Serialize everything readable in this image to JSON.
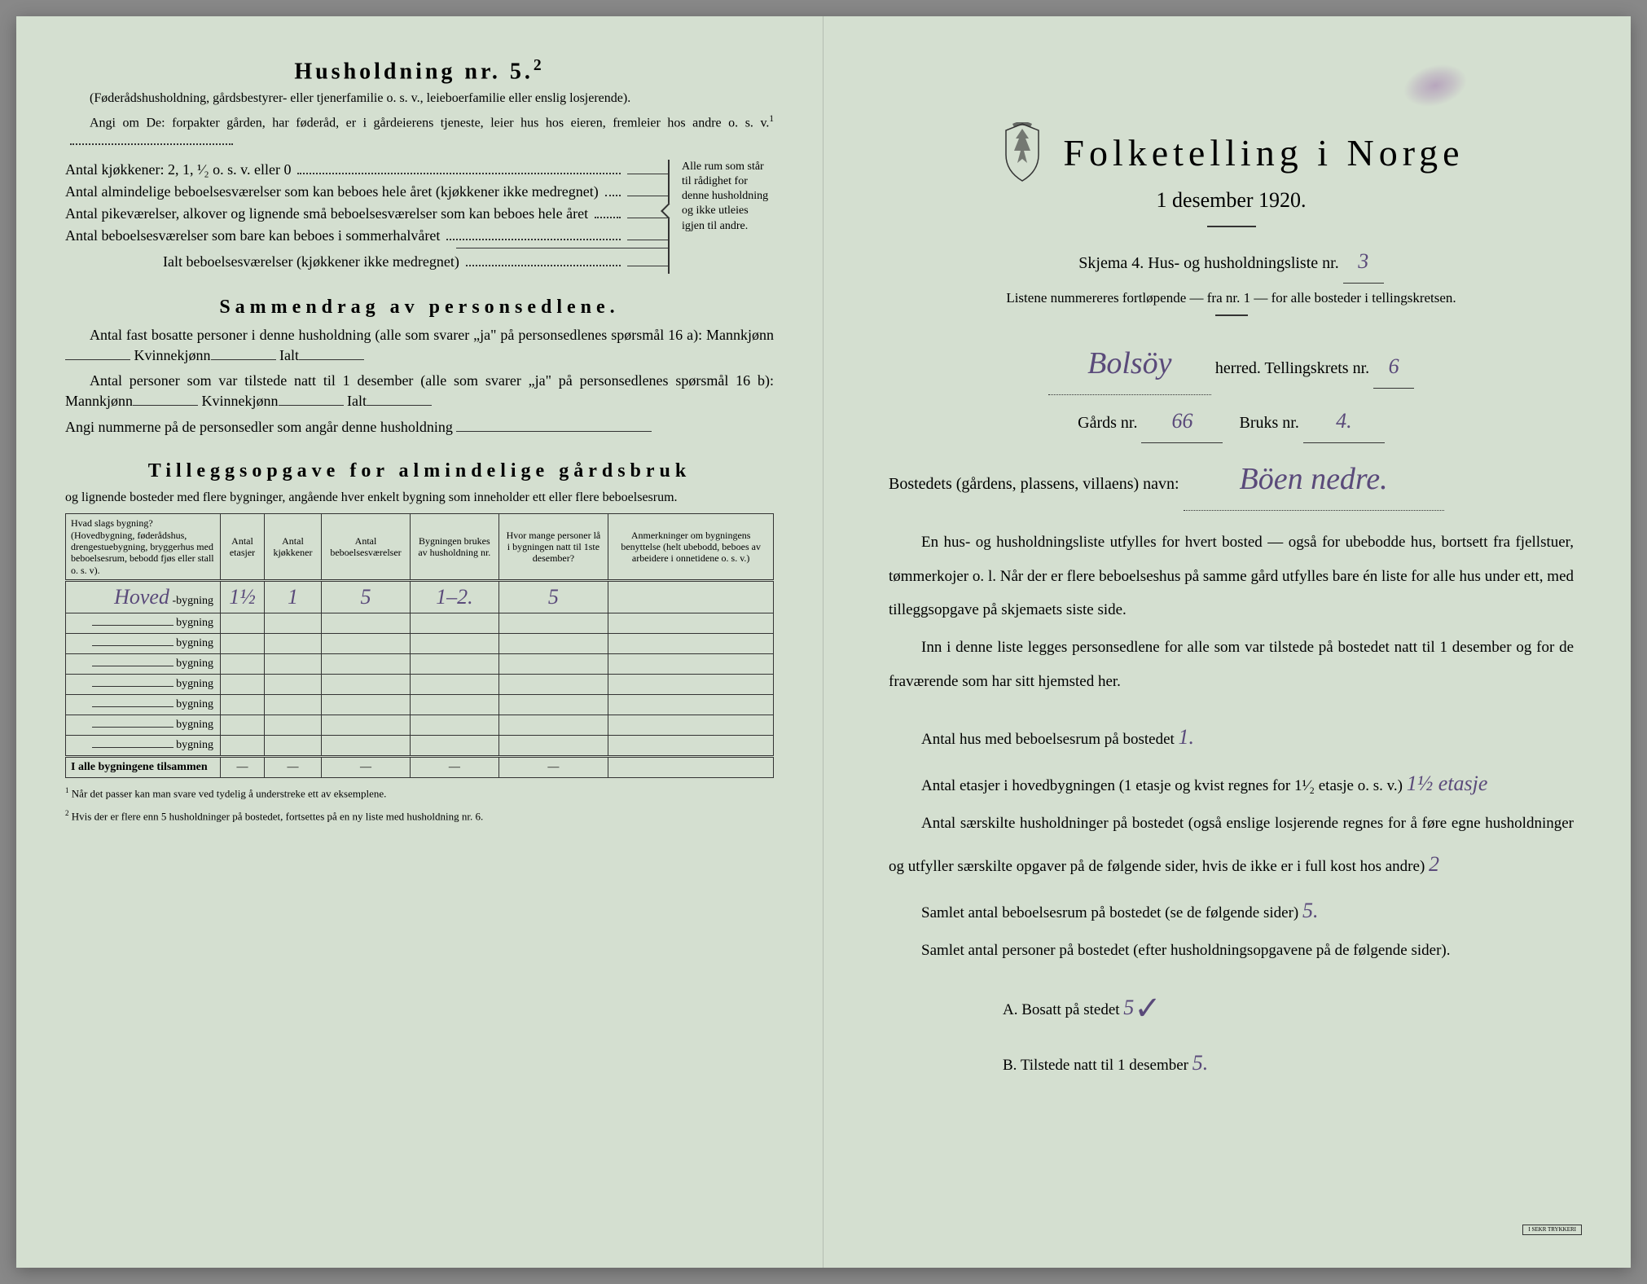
{
  "leftPage": {
    "heading": "Husholdning nr. 5.",
    "headingSup": "2",
    "note1": "(Føderådshusholdning, gårdsbestyrer- eller tjenerfamilie o. s. v., leieboerfamilie eller enslig losjerende).",
    "note2": "Angi om De:  forpakter gården, har føderåd, er i gårdeierens tjeneste, leier hus hos eieren, fremleier hos andre o. s. v.",
    "note2Sup": "1",
    "rows": [
      "Antal kjøkkener: 2, 1, ¹∕₂ o. s. v. eller 0",
      "Antal almindelige beboelsesværelser som kan beboes hele året (kjøkkener ikke medregnet)",
      "Antal pikeværelser, alkover og lignende små beboelsesværelser som kan beboes hele året",
      "Antal beboelsesværelser som bare kan beboes i sommerhalvåret"
    ],
    "rowsTotal": "Ialt beboelsesværelser  (kjøkkener ikke medregnet)",
    "braceText": "Alle rum som står til rådighet for denne husholdning og ikke utleies igjen til andre.",
    "section2Title": "Sammendrag av personsedlene.",
    "s2_line1a": "Antal fast bosatte personer i denne husholdning (alle som svarer „ja\" på personsedlenes spørsmål 16 a): Mannkjønn",
    "s2_line1b": "Kvinnekjønn",
    "s2_line1c": "Ialt",
    "s2_line2a": "Antal personer som var tilstede natt til 1 desember (alle som svarer „ja\" på personsedlenes spørsmål 16 b): Mannkjønn",
    "s2_line3": "Angi nummerne på de personsedler som angår denne husholdning",
    "section3Title": "Tilleggsopgave for almindelige gårdsbruk",
    "s3_sub": "og lignende bosteder med flere bygninger, angående hver enkelt bygning som inneholder ett eller flere beboelsesrum.",
    "table": {
      "headers": [
        "Hvad slags bygning?\n(Hovedbygning, føderådshus, drengestuebygning, bryggerhus med beboelsesrum, bebodd fjøs eller stall o. s. v).",
        "Antal etasjer",
        "Antal kjøkkener",
        "Antal beboelsesværelser",
        "Bygningen brukes av husholdning nr.",
        "Hvor mange personer lå i bygningen natt til 1ste desember?",
        "Anmerkninger om bygningens benyttelse (helt ubebodd, beboes av arbeidere i onnetidene o. s. v.)"
      ],
      "rows": [
        {
          "label": "Hoved",
          "suffix": "-bygning",
          "vals": [
            "1½",
            "1",
            "5",
            "1–2.",
            "5",
            ""
          ]
        },
        {
          "label": "",
          "suffix": "bygning",
          "vals": [
            "",
            "",
            "",
            "",
            "",
            ""
          ]
        },
        {
          "label": "",
          "suffix": "bygning",
          "vals": [
            "",
            "",
            "",
            "",
            "",
            ""
          ]
        },
        {
          "label": "",
          "suffix": "bygning",
          "vals": [
            "",
            "",
            "",
            "",
            "",
            ""
          ]
        },
        {
          "label": "",
          "suffix": "bygning",
          "vals": [
            "",
            "",
            "",
            "",
            "",
            ""
          ]
        },
        {
          "label": "",
          "suffix": "bygning",
          "vals": [
            "",
            "",
            "",
            "",
            "",
            ""
          ]
        },
        {
          "label": "",
          "suffix": "bygning",
          "vals": [
            "",
            "",
            "",
            "",
            "",
            ""
          ]
        },
        {
          "label": "",
          "suffix": "bygning",
          "vals": [
            "",
            "",
            "",
            "",
            "",
            ""
          ]
        }
      ],
      "totalLabel": "I alle bygningene tilsammen",
      "totalVals": [
        "—",
        "—",
        "—",
        "—",
        "—",
        ""
      ]
    },
    "footnote1": "Når det passer kan man svare ved tydelig å understreke ett av eksemplene.",
    "footnote2": "Hvis der er flere enn 5 husholdninger på bostedet, fortsettes på en ny liste med husholdning nr. 6.",
    "fn1Sup": "1",
    "fn2Sup": "2"
  },
  "rightPage": {
    "title": "Folketelling  i  Norge",
    "subtitle": "1 desember 1920.",
    "skjemaLine": "Skjema 4.   Hus- og husholdningsliste nr.",
    "skjemaNr": "3",
    "listSub": "Listene nummereres fortløpende — fra nr. 1 — for alle bosteder i tellingskretsen.",
    "herredVal": "Bolsöy",
    "herredLabel": "herred.   Tellingskrets nr.",
    "tellingsNr": "6",
    "gardsLabel": "Gårds nr.",
    "gardsNr": "66",
    "bruksLabel": "Bruks nr.",
    "bruksNr": "4.",
    "bostedLabel": "Bostedets (gårdens, plassens, villaens) navn:",
    "bostedVal": "Böen  nedre.",
    "para1": "En hus- og husholdningsliste utfylles for hvert bosted — også for ubebodde hus, bortsett fra fjellstuer, tømmerkojer o. l.  Når der er flere beboelseshus på samme gård utfylles bare én liste for alle hus under ett, med tilleggsopgave på skjemaets siste side.",
    "para2": "Inn i denne liste legges personsedlene for alle som var tilstede på bostedet natt til 1 desember og for de fraværende som har sitt hjemsted her.",
    "q1": "Antal hus med beboelsesrum på bostedet",
    "q1Val": "1.",
    "q2a": "Antal etasjer i hovedbygningen (1 etasje og kvist regnes for 1¹∕₂ etasje o. s. v.)",
    "q2Val": "1½ etasje",
    "q3": "Antal særskilte husholdninger på bostedet (også enslige losjerende regnes for å føre egne husholdninger og utfyller særskilte opgaver på de følgende sider, hvis de ikke er i full kost hos andre)",
    "q3Val": "2",
    "q4": "Samlet antal beboelsesrum på bostedet (se de følgende sider)",
    "q4Val": "5.",
    "q5": "Samlet antal personer på bostedet (efter husholdningsopgavene på de følgende sider).",
    "q5a": "A.  Bosatt på stedet",
    "q5aVal": "5",
    "q5b": "B.  Tilstede natt til 1 desember",
    "q5bVal": "5.",
    "stamp": "I SEKR TRYKKERI"
  },
  "colors": {
    "paper": "#d4dfd0",
    "ink": "#222222",
    "handwriting": "#5a4a7a"
  }
}
